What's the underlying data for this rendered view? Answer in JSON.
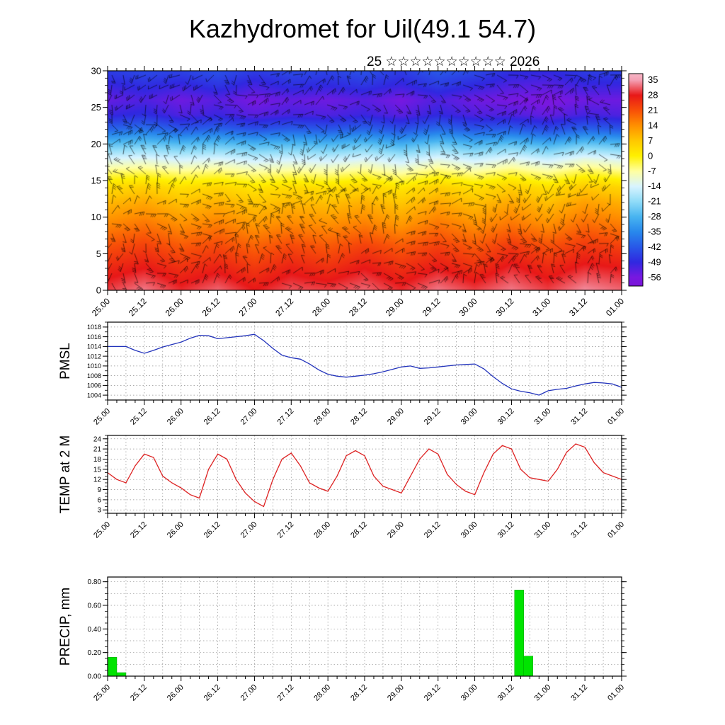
{
  "title": "Kazhydromet for Uil(49.1 54.7)",
  "subtitle": {
    "prefix": "25",
    "stars": "☆☆☆☆☆☆☆☆☆☆",
    "suffix": "2026"
  },
  "time_labels": [
    "25.00",
    "25.12",
    "26.00",
    "26.12",
    "27.00",
    "27.12",
    "28.00",
    "28.12",
    "29.00",
    "29.12",
    "30.00",
    "30.12",
    "31.00",
    "31.12",
    "01.00"
  ],
  "chart_data": [
    {
      "type": "heatmap",
      "name": "temperature-height cross-section with wind barbs",
      "ylim": [
        0,
        30
      ],
      "yticks": [
        0,
        5,
        10,
        15,
        20,
        25,
        30
      ],
      "x_hours_range": [
        0,
        168
      ],
      "heights": [
        0,
        3,
        6,
        9,
        12,
        14,
        16,
        18,
        20,
        22,
        24,
        26,
        28,
        30
      ],
      "column_hours": [
        0,
        12,
        24,
        36,
        48,
        60,
        72,
        84,
        96,
        108,
        120,
        132,
        144,
        156,
        168
      ],
      "columns": [
        [
          30,
          26,
          21,
          15,
          9,
          4,
          -4,
          -14,
          -26,
          -40,
          -50,
          -54,
          -50,
          -46
        ],
        [
          33,
          28,
          23,
          17,
          11,
          6,
          -3,
          -13,
          -25,
          -38,
          -48,
          -52,
          -48,
          -44
        ],
        [
          29,
          25,
          20,
          14,
          8,
          3,
          -5,
          -15,
          -27,
          -42,
          -52,
          -55,
          -50,
          -45
        ],
        [
          32,
          27,
          22,
          16,
          10,
          5,
          -4,
          -14,
          -26,
          -40,
          -50,
          -53,
          -47,
          -43
        ],
        [
          28,
          24,
          19,
          13,
          7,
          2,
          -6,
          -16,
          -28,
          -43,
          -53,
          -56,
          -51,
          -46
        ],
        [
          31,
          27,
          22,
          15,
          9,
          4,
          -5,
          -15,
          -27,
          -41,
          -51,
          -54,
          -48,
          -44
        ],
        [
          30,
          25,
          20,
          14,
          8,
          3,
          -6,
          -16,
          -28,
          -42,
          -52,
          -55,
          -49,
          -45
        ],
        [
          32,
          28,
          23,
          16,
          10,
          5,
          -4,
          -14,
          -26,
          -40,
          -50,
          -53,
          -47,
          -43
        ],
        [
          29,
          25,
          20,
          13,
          7,
          2,
          -7,
          -17,
          -29,
          -43,
          -53,
          -56,
          -50,
          -46
        ],
        [
          33,
          28,
          23,
          17,
          11,
          6,
          -3,
          -13,
          -25,
          -39,
          -49,
          -52,
          -46,
          -42
        ],
        [
          30,
          25,
          20,
          14,
          8,
          3,
          -6,
          -16,
          -28,
          -42,
          -52,
          -55,
          -49,
          -44
        ],
        [
          33,
          29,
          24,
          17,
          11,
          6,
          -3,
          -13,
          -26,
          -41,
          -52,
          -56,
          -52,
          -48
        ],
        [
          30,
          26,
          21,
          14,
          8,
          3,
          -6,
          -16,
          -29,
          -44,
          -54,
          -57,
          -53,
          -49
        ],
        [
          34,
          29,
          24,
          18,
          12,
          7,
          -2,
          -12,
          -25,
          -40,
          -51,
          -55,
          -50,
          -46
        ],
        [
          32,
          28,
          23,
          16,
          10,
          5,
          -4,
          -14,
          -27,
          -42,
          -52,
          -55,
          -50,
          -45
        ]
      ],
      "colorbar": {
        "levels": [
          35,
          28,
          21,
          14,
          7,
          0,
          -7,
          -14,
          -21,
          -28,
          -35,
          -42,
          -49,
          -56
        ],
        "stops": [
          {
            "v": 38,
            "c": "#f6b6c6"
          },
          {
            "v": 35,
            "c": "#f4a0b4"
          },
          {
            "v": 28,
            "c": "#e81818"
          },
          {
            "v": 21,
            "c": "#f85008"
          },
          {
            "v": 14,
            "c": "#ff9000"
          },
          {
            "v": 7,
            "c": "#ffc800"
          },
          {
            "v": 0,
            "c": "#fff000"
          },
          {
            "v": -7,
            "c": "#ffffa0"
          },
          {
            "v": -14,
            "c": "#d8f4ff"
          },
          {
            "v": -21,
            "c": "#90dcf8"
          },
          {
            "v": -28,
            "c": "#48b4f0"
          },
          {
            "v": -35,
            "c": "#2888ec"
          },
          {
            "v": -42,
            "c": "#2858e8"
          },
          {
            "v": -49,
            "c": "#3028e0"
          },
          {
            "v": -56,
            "c": "#7818e0"
          },
          {
            "v": -60,
            "c": "#7a14d8"
          }
        ]
      }
    },
    {
      "type": "line",
      "name": "PMSL",
      "color": "#2233bb",
      "ylim": [
        1003,
        1019
      ],
      "yticks": [
        1004,
        1006,
        1008,
        1010,
        1012,
        1014,
        1016,
        1018
      ],
      "step_hours": 3,
      "values": [
        1014,
        1014,
        1014,
        1013.2,
        1012.6,
        1013.2,
        1013.9,
        1014.4,
        1014.9,
        1015.7,
        1016.3,
        1016.2,
        1015.6,
        1015.8,
        1016,
        1016.2,
        1016.5,
        1015.2,
        1013.6,
        1012.2,
        1011.7,
        1011.4,
        1010.4,
        1009.2,
        1008.3,
        1007.9,
        1007.7,
        1007.9,
        1008.1,
        1008.4,
        1008.8,
        1009.3,
        1009.8,
        1010,
        1009.5,
        1009.6,
        1009.8,
        1010,
        1010.2,
        1010.3,
        1010.4,
        1009.4,
        1007.8,
        1006.4,
        1005.3,
        1004.8,
        1004.5,
        1004,
        1004.9,
        1005.2,
        1005.4,
        1005.9,
        1006.3,
        1006.6,
        1006.5,
        1006.3,
        1005.6
      ]
    },
    {
      "type": "line",
      "name": "TEMP at 2 M",
      "color": "#dd2222",
      "ylim": [
        2,
        25
      ],
      "yticks": [
        3,
        6,
        9,
        12,
        15,
        18,
        21,
        24
      ],
      "step_hours": 3,
      "values": [
        14,
        12,
        11,
        16,
        19.5,
        18.5,
        13,
        11,
        9.5,
        7.5,
        6.5,
        15,
        19.5,
        18,
        12,
        8,
        5.5,
        4,
        12,
        18,
        19.8,
        16,
        11,
        9.5,
        8.5,
        13,
        19,
        20.5,
        19,
        13,
        10,
        9,
        8,
        13,
        18,
        21,
        19.5,
        13.5,
        10.5,
        8.5,
        7.5,
        14,
        19.5,
        22,
        21,
        15,
        12.5,
        12,
        11.5,
        15,
        20,
        22.5,
        21.5,
        17,
        14,
        13,
        12
      ]
    },
    {
      "type": "bar",
      "name": "PRECIP, mm",
      "color": "#00e400",
      "ylim": [
        0,
        0.84
      ],
      "yticks": [
        0,
        0.2,
        0.4,
        0.6,
        0.8
      ],
      "ytick_labels": [
        "0.00",
        "0.20",
        "0.40",
        "0.60",
        "0.80"
      ],
      "bar_width_hours": 3,
      "bars": [
        {
          "h": 0,
          "v": 0.16
        },
        {
          "h": 3,
          "v": 0.03
        },
        {
          "h": 133,
          "v": 0.73
        },
        {
          "h": 136,
          "v": 0.17
        }
      ]
    }
  ]
}
